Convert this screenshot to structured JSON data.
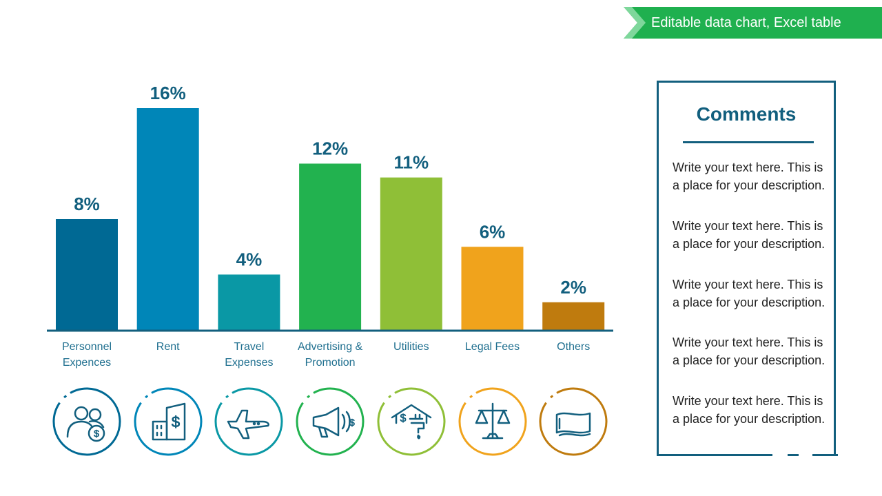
{
  "banner": {
    "text": "Editable data chart, Excel table",
    "color": "#1fb04f"
  },
  "chart_data": {
    "type": "bar",
    "categories": [
      "Personnel Expences",
      "Rent",
      "Travel Expenses",
      "Advertising & Promotion",
      "Utilities",
      "Legal Fees",
      "Others"
    ],
    "category_lines": [
      [
        "Personnel",
        "Expences"
      ],
      [
        "Rent"
      ],
      [
        "Travel",
        "Expenses"
      ],
      [
        "Advertising &",
        "Promotion"
      ],
      [
        "Utilities"
      ],
      [
        "Legal Fees"
      ],
      [
        "Others"
      ]
    ],
    "values": [
      8,
      16,
      4,
      12,
      11,
      6,
      2
    ],
    "value_labels": [
      "8%",
      "16%",
      "4%",
      "12%",
      "11%",
      "6%",
      "2%"
    ],
    "colors": [
      "#006994",
      "#0086b8",
      "#0a98a5",
      "#22b24f",
      "#8fbf37",
      "#f0a31c",
      "#bf7b0e"
    ],
    "icons": [
      "people-money-icon",
      "building-dollar-icon",
      "airplane-icon",
      "megaphone-icon",
      "house-faucet-icon",
      "scales-icon",
      "banknote-icon"
    ],
    "ylim": [
      0,
      16
    ],
    "grid": false,
    "legend": "none"
  },
  "comments": {
    "title": "Comments",
    "items": [
      "Write your text here. This is a place for your description.",
      "Write your text here. This is a place for your description.",
      "Write your text here. This is a place for your description.",
      "Write your text here. This is a place for your description.",
      "Write your text here. This is a place for your description."
    ]
  }
}
